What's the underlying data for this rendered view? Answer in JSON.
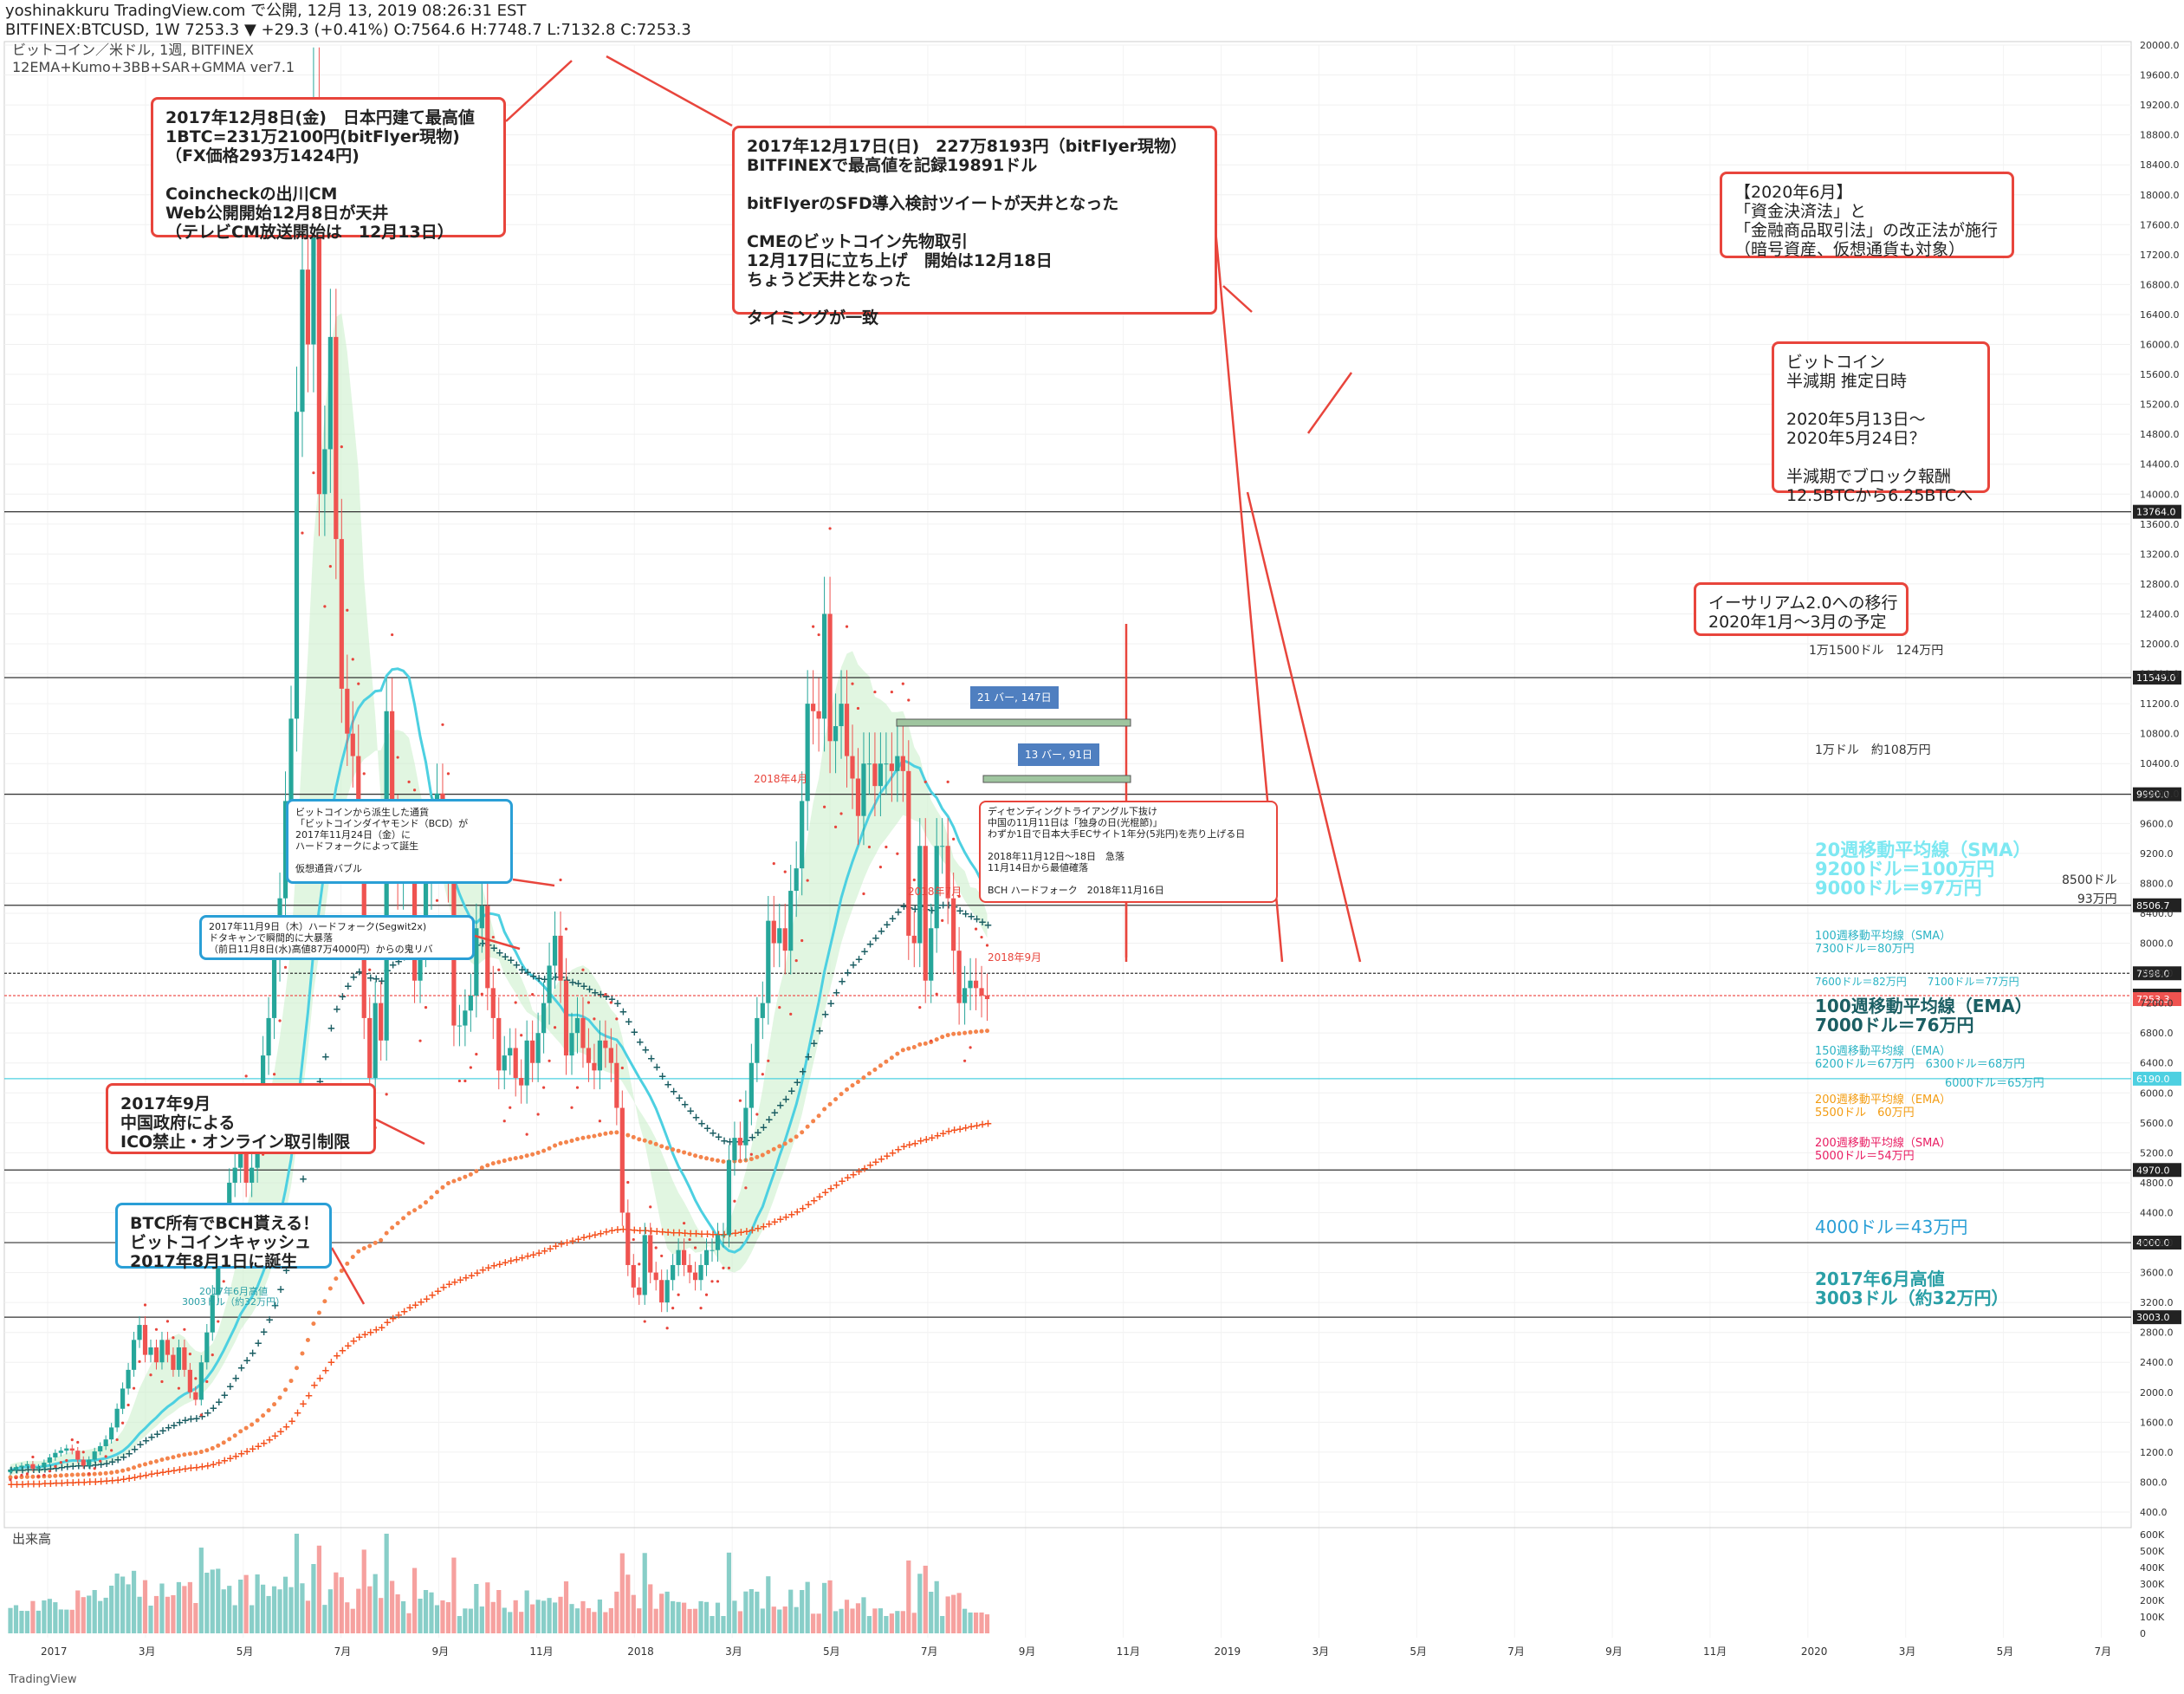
{
  "header": {
    "line1": "yoshinakkuru TradingView.com で公開, 12月 13, 2019 08:26:31 EST",
    "line2": "BITFINEX:BTCUSD, 1W 7253.3 ▼ +29.3 (+0.41%) O:7564.6 H:7748.7 L:7132.8 C:7253.3"
  },
  "legend": {
    "line1": "ビットコイン／米ドル, 1週, BITFINEX",
    "line2": "12EMA+Kumo+3BB+SAR+GMMA ver7.1"
  },
  "volume_label": "出来高",
  "watermark": "TradingView",
  "colors": {
    "up": "#26a69a",
    "down": "#ef5350",
    "sar": "#e8453c",
    "ema100": "#1b5e63",
    "sma20": "#4dd0e1",
    "ema200": "#f4844c",
    "sma200": "#f4511e",
    "box": "#e8453c",
    "blue": "#2a9fd6"
  },
  "chart_data": {
    "type": "candlestick",
    "title": "ビットコイン／米ドル, 1週, BITFINEX",
    "ylim": [
      400,
      20000
    ],
    "x_ticks": [
      "2017",
      "3月",
      "5月",
      "7月",
      "9月",
      "11月",
      "2018",
      "3月",
      "5月",
      "7月",
      "9月",
      "11月",
      "2019",
      "3月",
      "5月",
      "7月",
      "9月",
      "11月",
      "2020",
      "3月",
      "5月",
      "7月"
    ],
    "y_ticks": [
      400,
      800,
      1200,
      1600,
      2000,
      2400,
      2800,
      3200,
      3600,
      4000,
      4400,
      4800,
      5200,
      5600,
      6000,
      6400,
      6800,
      7200,
      7600,
      8000,
      8400,
      8800,
      9200,
      9600,
      10000,
      10400,
      10800,
      11200,
      11600,
      12000,
      12400,
      12800,
      13200,
      13600,
      14000,
      14400,
      14800,
      15200,
      15600,
      16000,
      16400,
      16800,
      17200,
      17600,
      18000,
      18400,
      18800,
      19200,
      19600,
      20000
    ],
    "volume_ticks": [
      "0",
      "100K",
      "200K",
      "300K",
      "400K",
      "500K",
      "600K"
    ],
    "series_close": [
      960,
      1000,
      1020,
      1040,
      980,
      1000,
      1060,
      1130,
      1190,
      1220,
      1250,
      1220,
      1100,
      1020,
      1100,
      1210,
      1280,
      1370,
      1530,
      1780,
      2050,
      2300,
      2700,
      2900,
      2500,
      2600,
      2400,
      2700,
      2500,
      2300,
      2600,
      2300,
      2000,
      1900,
      2400,
      2800,
      3300,
      3900,
      4300,
      4800,
      5000,
      5700,
      4800,
      5000,
      5800,
      6500,
      7000,
      7800,
      8600,
      9900,
      11000,
      15100,
      17000,
      16000,
      19200,
      14000,
      14600,
      16100,
      13400,
      11400,
      10800,
      10500,
      9400,
      7000,
      6200,
      7200,
      6700,
      11100,
      9600,
      8800,
      9300,
      9200,
      7500,
      8000,
      8800,
      9600,
      10000,
      9400,
      8900,
      6900,
      6900,
      7100,
      7300,
      8200,
      8500,
      7400,
      7000,
      6300,
      6500,
      6600,
      6200,
      6100,
      6700,
      6400,
      6800,
      7200,
      7700,
      8100,
      7500,
      6500,
      6800,
      7000,
      6600,
      6400,
      6300,
      6700,
      6600,
      6400,
      5800,
      4400,
      3700,
      3400,
      3300,
      4100,
      3600,
      3500,
      3200,
      3500,
      3700,
      3900,
      3700,
      3600,
      3500,
      3700,
      3900,
      3900,
      4100,
      4100,
      5100,
      5400,
      5300,
      5800,
      6400,
      7000,
      7200,
      8300,
      8000,
      8200,
      7900,
      8700,
      9000,
      9900,
      11200,
      11100,
      11000,
      12400,
      10700,
      10900,
      11200,
      10500,
      10200,
      9700,
      10400,
      10400,
      10100,
      10400,
      10400,
      10300,
      10500,
      10300,
      8100,
      8000,
      9300,
      7500,
      8200,
      9300,
      9300,
      8600,
      7900,
      7200,
      7400,
      7500,
      7400,
      7300,
      7253
    ],
    "indicators": [
      {
        "name": "100週移動平均線（EMA）",
        "text": "100週移動平均線（EMA）\n7000ドル＝76万円"
      },
      {
        "name": "20週移動平均線（SMA）",
        "text": "20週移動平均線（SMA）\n9200ドル＝100万円\n9000ドル＝97万円"
      },
      {
        "name": "200週移動平均線（EMA）",
        "text": "200週移動平均線（EMA）\n5500ドル　60万円"
      },
      {
        "name": "200週移動平均線（SMA）",
        "text": "200週移動平均線（SMA）\n5000ドル＝54万円"
      },
      {
        "name": "150週移動平均線（EMA）",
        "text": "150週移動平均線（EMA）\n6200ドル＝67万円　6300ドル＝68万円"
      },
      {
        "name": "100週移動平均線（SMA）",
        "text": "100週移動平均線（SMA）\n7300ドル＝80万円"
      }
    ],
    "levels": [
      {
        "value": 13764,
        "label": "13764.0",
        "note": ""
      },
      {
        "value": 11549,
        "label": "11549.0",
        "note": "1万1500ドル　124万円"
      },
      {
        "value": 9990,
        "label": "9990.0",
        "note": "1万ドル　約108万円"
      },
      {
        "value": 8506.7,
        "label": "8506.7",
        "note": ""
      },
      {
        "value": 7598,
        "label": "7598.0",
        "note": ""
      },
      {
        "value": 7300,
        "label": "7300.0",
        "note": "7600ドル＝82万円　　7100ドル＝77万円"
      },
      {
        "value": 6190,
        "label": "6190.0",
        "note": "6000ドル＝65万円"
      },
      {
        "value": 4970,
        "label": "4970.0",
        "note": ""
      },
      {
        "value": 4000,
        "label": "4000.0",
        "note": "4000ドル＝43万円"
      },
      {
        "value": 3003,
        "label": "3003.0",
        "note": "2017年6月高値\n3003ドル（約32万円）"
      }
    ],
    "current_price_label": "7253.3",
    "side_note": "8500ドル\n93万円",
    "period_labels": [
      "2018年4月",
      "2018年7月",
      "2018年9月"
    ],
    "bar_counts": [
      "21 バー, 147日",
      "13 バー, 91日"
    ],
    "small_note_june2017": "2017年6月高値\n3003ドル（約32万円）"
  },
  "annotations": {
    "a1": "2017年12月8日(金)　日本円建て最高値\n1BTC=231万2100円(bitFlyer現物)\n（FX価格293万1424円)\n\nCoincheckの出川CM\nWeb公開開始12月8日が天井\n（テレビCM放送開始は　12月13日）",
    "a2": "2017年12月17日(日)　227万8193円（bitFlyer現物）\nBITFINEXで最高値を記録19891ドル\n\nbitFlyerのSFD導入検討ツイートが天井となった\n\nCMEのビットコイン先物取引\n12月17日に立ち上げ　開始は12月18日\nちょうど天井となった\n\nタイミングが一致",
    "a3": "【2020年6月】\n「資金決済法」と\n「金融商品取引法」の改正法が施行\n（暗号資産、仮想通貨も対象）",
    "a4": "ビットコイン\n半減期 推定日時\n\n2020年5月13日～\n2020年5月24日？\n\n半減期でブロック報酬\n12.5BTCから6.25BTCへ",
    "a5": "イーサリアム2.0への移行\n2020年1月～3月の予定",
    "a6": "ビットコインから派生した通貨\n「ビットコインダイヤモンド（BCD）が\n2017年11月24日（金）に\nハードフォークによって誕生\n\n仮想通貨バブル",
    "a7": "2017年11月9日（木）ハードフォーク(Segwit2x)\nドタキャンで瞬間的に大暴落\n（前日11月8日(水)高値87万4000円）からの鬼リバ",
    "a8": "ディセンディングトライアングル下抜け\n中国の11月11日は「独身の日(光棍節)」\nわずか1日で日本大手ECサイト1年分(5兆円)を売り上げる日\n\n2018年11月12日～18日　急落\n11月14日から最値確落\n\nBCH ハードフォーク　2018年11月16日",
    "a9": "2017年9月\n中国政府による\nICO禁止・オンライン取引制限",
    "a10": "BTC所有でBCH貰える！\nビットコインキャッシュ\n2017年8月1日に誕生"
  }
}
